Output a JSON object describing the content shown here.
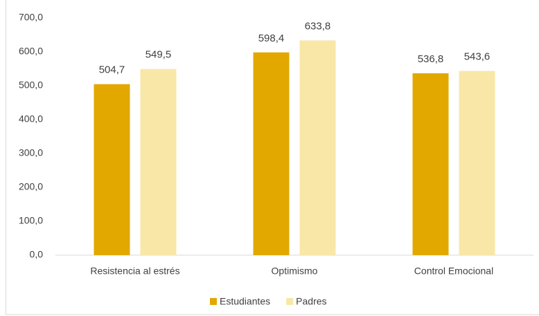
{
  "chart_data": {
    "type": "bar",
    "categories": [
      "Resistencia al estrés",
      "Optimismo",
      "Control Emocional"
    ],
    "series": [
      {
        "name": "Estudiantes",
        "color": "#e2a800",
        "values": [
          504.7,
          598.4,
          536.8
        ],
        "value_labels": [
          "504,7",
          "598,4",
          "536,8"
        ]
      },
      {
        "name": "Padres",
        "color": "#f9e7a7",
        "values": [
          549.5,
          633.8,
          543.6
        ],
        "value_labels": [
          "549,5",
          "633,8",
          "543,6"
        ]
      }
    ],
    "ylim": [
      0,
      700
    ],
    "yticks": [
      {
        "value": 0,
        "label": "0,0"
      },
      {
        "value": 100,
        "label": "100,0"
      },
      {
        "value": 200,
        "label": "200,0"
      },
      {
        "value": 300,
        "label": "300,0"
      },
      {
        "value": 400,
        "label": "400,0"
      },
      {
        "value": 500,
        "label": "500,0"
      },
      {
        "value": 600,
        "label": "600,0"
      },
      {
        "value": 700,
        "label": "700,0"
      }
    ],
    "grid": false,
    "legend": "bottom"
  }
}
